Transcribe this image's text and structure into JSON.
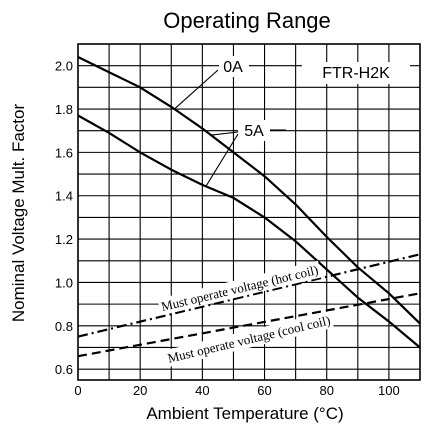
{
  "chart_data": {
    "type": "line",
    "title": "Operating Range",
    "xlabel": "Ambient Temperature (°C)",
    "ylabel": "Nominal Voltage Mult. Factor",
    "xlim": [
      0,
      110
    ],
    "ylim": [
      0.55,
      2.1
    ],
    "x_ticks": [
      0,
      20,
      40,
      60,
      80,
      100
    ],
    "y_ticks": [
      0.6,
      0.8,
      1.0,
      1.2,
      1.4,
      1.6,
      1.8,
      2.0
    ],
    "x_tick_labels": [
      "0",
      "20",
      "40",
      "60",
      "80",
      "100"
    ],
    "y_tick_labels": [
      "0.6",
      "0.8",
      "1.0",
      "1.2",
      "1.4",
      "1.6",
      "1.8",
      "2.0"
    ],
    "grid": true,
    "model_label": "FTR-H2K",
    "series": [
      {
        "name": "0A",
        "style": "solid",
        "x": [
          0,
          10,
          20,
          30,
          40,
          50,
          60,
          70,
          80,
          90,
          100,
          110
        ],
        "y": [
          2.04,
          1.97,
          1.9,
          1.81,
          1.71,
          1.6,
          1.49,
          1.36,
          1.21,
          1.07,
          0.95,
          0.81
        ]
      },
      {
        "name": "5A",
        "style": "solid",
        "x": [
          0,
          10,
          20,
          30,
          40,
          50,
          60,
          70,
          80,
          90,
          100,
          110
        ],
        "y": [
          1.77,
          1.69,
          1.6,
          1.52,
          1.45,
          1.39,
          1.3,
          1.19,
          1.06,
          0.93,
          0.82,
          0.7
        ]
      },
      {
        "name": "Must operate voltage (hot coil)",
        "style": "dashdot",
        "x": [
          0,
          110
        ],
        "y": [
          0.75,
          1.13
        ]
      },
      {
        "name": "Must operate voltage (cool coil)",
        "style": "dashed",
        "x": [
          0,
          110
        ],
        "y": [
          0.66,
          0.95
        ]
      }
    ]
  }
}
